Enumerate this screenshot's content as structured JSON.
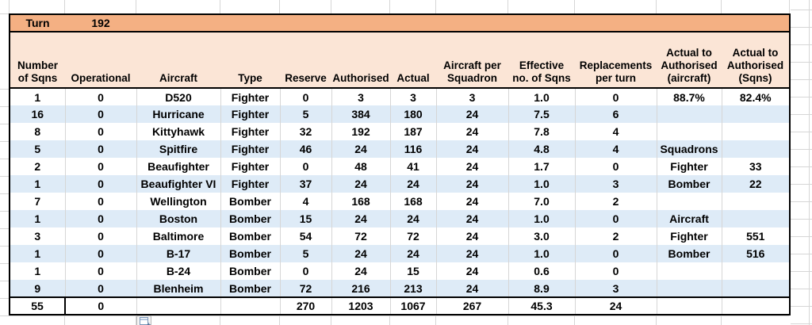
{
  "sheet": {
    "turn": {
      "label": "Turn",
      "value": "192"
    },
    "columns": [
      "Number\nof Sqns",
      "Operational",
      "Aircraft",
      "Type",
      "Reserve",
      "Authorised",
      "Actual",
      "Aircraft per\nSquadron",
      "Effective\nno. of Sqns",
      "Replacements\nper turn",
      "Actual to\nAuthorised\n(aircraft)",
      "Actual to\nAuthorised\n(Sqns)"
    ],
    "rows": [
      [
        "1",
        "0",
        "D520",
        "Fighter",
        "0",
        "3",
        "3",
        "3",
        "1.0",
        "0",
        "88.7%",
        "82.4%"
      ],
      [
        "16",
        "0",
        "Hurricane",
        "Fighter",
        "5",
        "384",
        "180",
        "24",
        "7.5",
        "6",
        "",
        ""
      ],
      [
        "8",
        "0",
        "Kittyhawk",
        "Fighter",
        "32",
        "192",
        "187",
        "24",
        "7.8",
        "4",
        "",
        ""
      ],
      [
        "5",
        "0",
        "Spitfire",
        "Fighter",
        "46",
        "24",
        "116",
        "24",
        "4.8",
        "4",
        "Squadrons",
        ""
      ],
      [
        "2",
        "0",
        "Beaufighter",
        "Fighter",
        "0",
        "48",
        "41",
        "24",
        "1.7",
        "0",
        "Fighter",
        "33"
      ],
      [
        "1",
        "0",
        "Beaufighter VI",
        "Fighter",
        "37",
        "24",
        "24",
        "24",
        "1.0",
        "3",
        "Bomber",
        "22"
      ],
      [
        "7",
        "0",
        "Wellington",
        "Bomber",
        "4",
        "168",
        "168",
        "24",
        "7.0",
        "2",
        "",
        ""
      ],
      [
        "1",
        "0",
        "Boston",
        "Bomber",
        "15",
        "24",
        "24",
        "24",
        "1.0",
        "0",
        "Aircraft",
        ""
      ],
      [
        "3",
        "0",
        "Baltimore",
        "Bomber",
        "54",
        "72",
        "72",
        "24",
        "3.0",
        "2",
        "Fighter",
        "551"
      ],
      [
        "1",
        "0",
        "B-17",
        "Bomber",
        "5",
        "24",
        "24",
        "24",
        "1.0",
        "0",
        "Bomber",
        "516"
      ],
      [
        "1",
        "0",
        "B-24",
        "Bomber",
        "0",
        "24",
        "15",
        "24",
        "0.6",
        "0",
        "",
        ""
      ],
      [
        "9",
        "0",
        "Blenheim",
        "Bomber",
        "72",
        "216",
        "213",
        "24",
        "8.9",
        "3",
        "",
        ""
      ]
    ],
    "totals": [
      "55",
      "0",
      "",
      "",
      "270",
      "1203",
      "1067",
      "267",
      "45.3",
      "24",
      "",
      ""
    ],
    "colors": {
      "turn_bar": "#F4B083",
      "header_fill": "#FBE5D6",
      "band_blue": "#DEEBF7",
      "gridline": "#D6D6D6",
      "border": "#000000"
    },
    "icons": {
      "paste_options": "paste-options-icon"
    }
  }
}
